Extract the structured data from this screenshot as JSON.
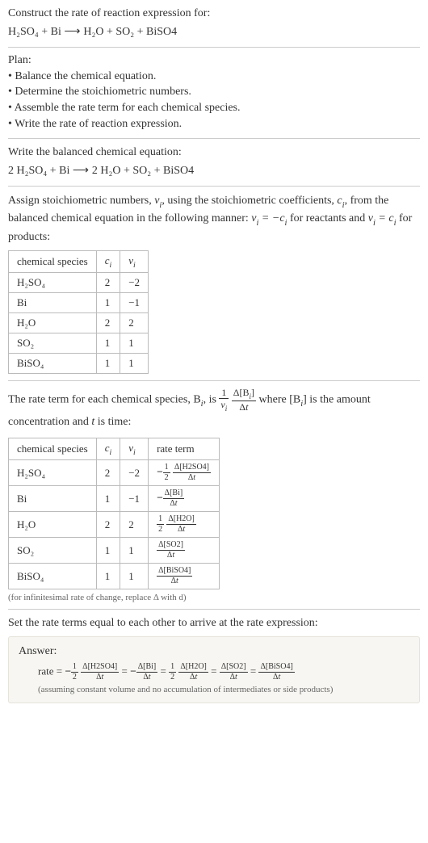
{
  "prompt": {
    "line1": "Construct the rate of reaction expression for:",
    "eq_lhs": "H₂SO₄ + Bi",
    "eq_rhs": "H₂O + SO₂ + BiSO4"
  },
  "plan": {
    "title": "Plan:",
    "items": [
      "Balance the chemical equation.",
      "Determine the stoichiometric numbers.",
      "Assemble the rate term for each chemical species.",
      "Write the rate of reaction expression."
    ]
  },
  "balanced": {
    "title": "Write the balanced chemical equation:",
    "lhs": "2 H₂SO₄ + Bi",
    "rhs": "2 H₂O + SO₂ + BiSO4"
  },
  "stoich_intro": {
    "p1a": "Assign stoichiometric numbers, ",
    "nu": "ν",
    "sub_i": "i",
    "p1b": ", using the stoichiometric coefficients, ",
    "c": "c",
    "p1c": ", from the balanced chemical equation in the following manner: ",
    "eq1": "νᵢ = −cᵢ",
    "p1d": " for reactants and ",
    "eq2": "νᵢ = cᵢ",
    "p1e": " for products:"
  },
  "table1": {
    "headers": [
      "chemical species",
      "cᵢ",
      "νᵢ"
    ],
    "rows": [
      {
        "species": "H₂SO₄",
        "c": "2",
        "nu": "−2"
      },
      {
        "species": "Bi",
        "c": "1",
        "nu": "−1"
      },
      {
        "species": "H₂O",
        "c": "2",
        "nu": "2"
      },
      {
        "species": "SO₂",
        "c": "1",
        "nu": "1"
      },
      {
        "species": "BiSO₄",
        "c": "1",
        "nu": "1"
      }
    ]
  },
  "rate_intro": {
    "p1": "The rate term for each chemical species, B",
    "p2": ", is ",
    "p3": " where [B",
    "p4": "] is the amount concentration and ",
    "tvar": "t",
    "p5": " is time:"
  },
  "table2": {
    "headers": [
      "chemical species",
      "cᵢ",
      "νᵢ",
      "rate term"
    ],
    "rows": [
      {
        "species": "H₂SO₄",
        "c": "2",
        "nu": "−2",
        "sign": "−",
        "coef_num": "1",
        "coef_den": "2",
        "d_species": "Δ[H2SO4]"
      },
      {
        "species": "Bi",
        "c": "1",
        "nu": "−1",
        "sign": "−",
        "coef_num": "",
        "coef_den": "",
        "d_species": "Δ[Bi]"
      },
      {
        "species": "H₂O",
        "c": "2",
        "nu": "2",
        "sign": "",
        "coef_num": "1",
        "coef_den": "2",
        "d_species": "Δ[H2O]"
      },
      {
        "species": "SO₂",
        "c": "1",
        "nu": "1",
        "sign": "",
        "coef_num": "",
        "coef_den": "",
        "d_species": "Δ[SO2]"
      },
      {
        "species": "BiSO₄",
        "c": "1",
        "nu": "1",
        "sign": "",
        "coef_num": "",
        "coef_den": "",
        "d_species": "Δ[BiSO4]"
      }
    ]
  },
  "rate_note": "(for infinitesimal rate of change, replace Δ with d)",
  "set_equal": "Set the rate terms equal to each other to arrive at the rate expression:",
  "answer": {
    "title": "Answer:",
    "prefix": "rate = ",
    "terms": [
      {
        "sign": "−",
        "coef_num": "1",
        "coef_den": "2",
        "d": "Δ[H2SO4]"
      },
      {
        "sign": "−",
        "coef_num": "",
        "coef_den": "",
        "d": "Δ[Bi]"
      },
      {
        "sign": "",
        "coef_num": "1",
        "coef_den": "2",
        "d": "Δ[H2O]"
      },
      {
        "sign": "",
        "coef_num": "",
        "coef_den": "",
        "d": "Δ[SO2]"
      },
      {
        "sign": "",
        "coef_num": "",
        "coef_den": "",
        "d": "Δ[BiSO4]"
      }
    ],
    "note": "(assuming constant volume and no accumulation of intermediates or side products)"
  }
}
